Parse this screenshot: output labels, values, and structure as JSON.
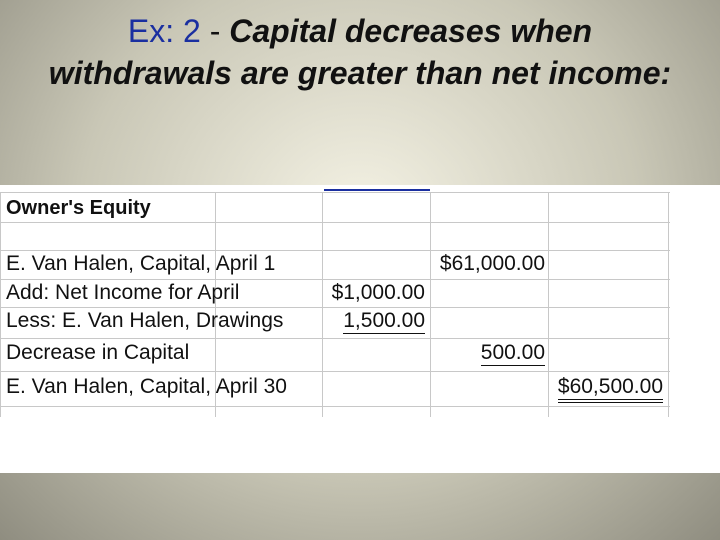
{
  "title": {
    "label": "Ex: 2",
    "separator": "-",
    "text": "Capital decreases when withdrawals are greater than net income:"
  },
  "table": {
    "heading": "Owner's Equity",
    "rows": [
      {
        "label": "E. Van Halen, Capital, April 1",
        "column": 2,
        "amount": "$61,000.00"
      },
      {
        "label": "Add: Net Income for April",
        "column": 1,
        "amount": "$1,000.00"
      },
      {
        "label": "Less: E. Van Halen, Drawings",
        "column": 1,
        "amount": "1,500.00",
        "underline": "single"
      },
      {
        "label": "Decrease in Capital",
        "column": 2,
        "amount": "500.00",
        "underline": "single"
      },
      {
        "label": "E. Van Halen, Capital, April 30",
        "column": 3,
        "amount": "$60,500.00",
        "underline": "double"
      }
    ]
  }
}
